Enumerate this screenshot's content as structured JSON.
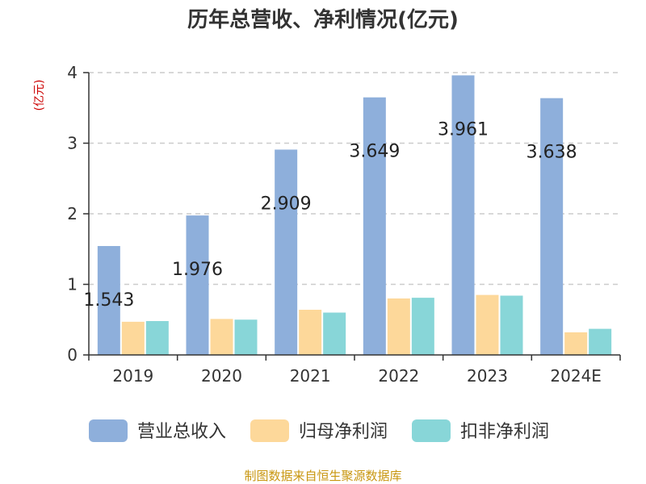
{
  "title": "历年总营收、净利情况(亿元)",
  "unit_label": "(亿元)",
  "source": "制图数据来自恒生聚源数据库",
  "colors": {
    "revenue": "#8eafdb",
    "net_profit": "#fdd89a",
    "deducted_profit": "#88d6d8",
    "grid": "#cccccc",
    "axis": "#333333"
  },
  "chart_data": {
    "type": "bar",
    "categories": [
      "2019",
      "2020",
      "2021",
      "2022",
      "2023",
      "2024E"
    ],
    "series": [
      {
        "name": "营业总收入",
        "values": [
          1.543,
          1.976,
          2.909,
          3.649,
          3.961,
          3.638
        ],
        "labels": [
          "1.543",
          "1.976",
          "2.909",
          "3.649",
          "3.961",
          "3.638"
        ]
      },
      {
        "name": "归母净利润",
        "values": [
          0.47,
          0.51,
          0.64,
          0.8,
          0.85,
          0.32
        ]
      },
      {
        "name": "扣非净利润",
        "values": [
          0.48,
          0.5,
          0.6,
          0.81,
          0.84,
          0.37
        ]
      }
    ],
    "ylim": [
      0,
      4
    ],
    "yticks": [
      "0",
      "1",
      "2",
      "3",
      "4"
    ],
    "grid": true,
    "legend": "bottom"
  }
}
